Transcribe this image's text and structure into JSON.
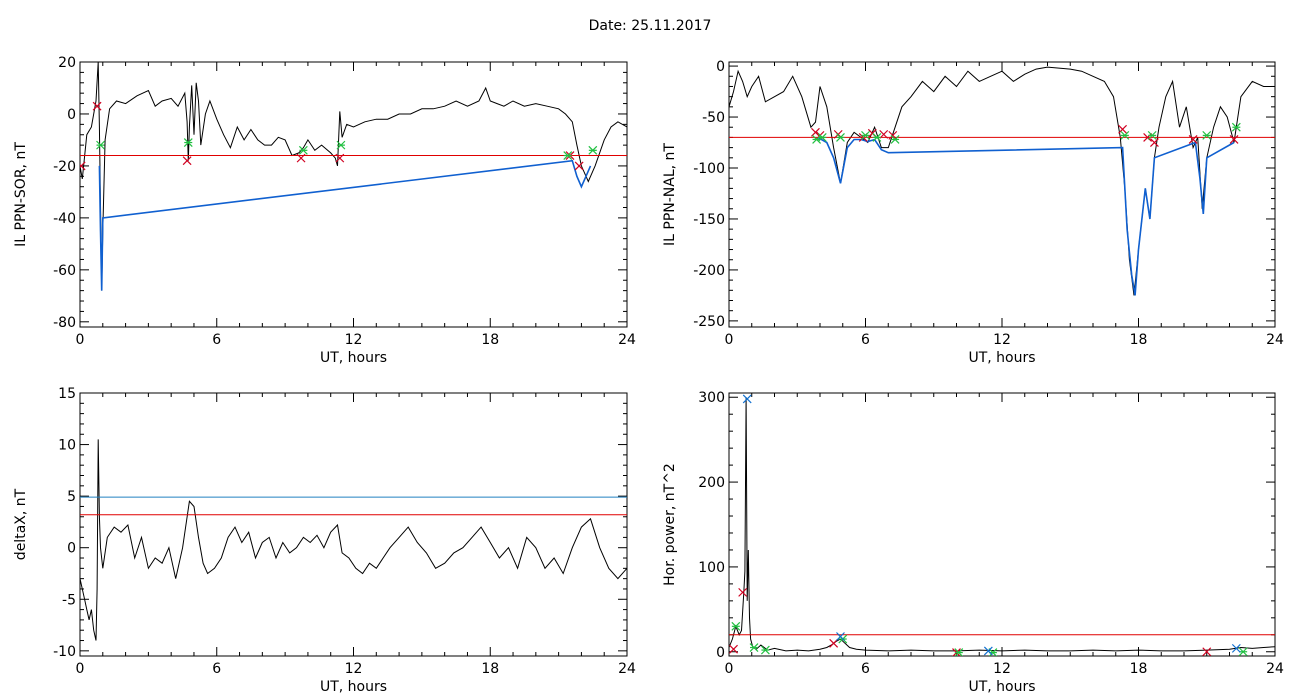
{
  "figure": {
    "title": "Date:  25.11.2017"
  },
  "chart_data": [
    {
      "id": "sor",
      "type": "line",
      "xlabel": "UT, hours",
      "ylabel": "IL PPN-SOR, nT",
      "xlim": [
        0,
        24
      ],
      "ylim": [
        -82,
        20
      ],
      "xticks": [
        0,
        6,
        12,
        18,
        24
      ],
      "yticks": [
        -80,
        -60,
        -40,
        -20,
        0,
        20
      ],
      "grid": false,
      "threshold_lines": [
        {
          "y": -16,
          "color": "#e00000"
        }
      ],
      "series": [
        {
          "color": "#000000",
          "x": [
            0,
            0.1,
            0.3,
            0.5,
            0.7,
            0.8,
            0.85,
            0.9,
            0.95,
            1.0,
            1.1,
            1.3,
            1.6,
            2.0,
            2.5,
            3.0,
            3.3,
            3.6,
            4.0,
            4.3,
            4.6,
            4.7,
            4.75,
            4.8,
            4.9,
            5.0,
            5.1,
            5.2,
            5.3,
            5.5,
            5.7,
            6.0,
            6.3,
            6.6,
            6.9,
            7.2,
            7.5,
            7.8,
            8.1,
            8.4,
            8.7,
            9.0,
            9.3,
            9.6,
            9.8,
            10.0,
            10.3,
            10.6,
            11.0,
            11.2,
            11.3,
            11.4,
            11.5,
            11.7,
            12.0,
            12.5,
            13.0,
            13.5,
            14.0,
            14.5,
            15.0,
            15.5,
            16.0,
            16.5,
            17.0,
            17.5,
            17.8,
            18.0,
            18.3,
            18.6,
            19.0,
            19.5,
            20.0,
            20.5,
            21.0,
            21.3,
            21.6,
            21.8,
            22.0,
            22.3,
            22.6,
            23.0,
            23.3,
            23.6,
            24.0
          ],
          "y": [
            -20,
            -25,
            -8,
            -5,
            5,
            20,
            -5,
            -35,
            -68,
            -45,
            -10,
            2,
            5,
            4,
            7,
            9,
            3,
            5,
            6,
            3,
            8,
            -3,
            -18,
            -5,
            11,
            -8,
            12,
            5,
            -12,
            0,
            5,
            -2,
            -8,
            -13,
            -5,
            -10,
            -6,
            -10,
            -12,
            -12,
            -9,
            -10,
            -16,
            -15,
            -13,
            -10,
            -14,
            -12,
            -15,
            -17,
            -20,
            1,
            -9,
            -4,
            -5,
            -3,
            -2,
            -2,
            0,
            0,
            2,
            2,
            3,
            5,
            3,
            5,
            10,
            5,
            4,
            3,
            5,
            3,
            4,
            3,
            2,
            0,
            -3,
            -12,
            -20,
            -26,
            -20,
            -10,
            -5,
            -3,
            -5
          ]
        },
        {
          "color": "#1060d0",
          "x": [
            0.85,
            0.9,
            0.95,
            1.0,
            21.6,
            21.8,
            22.0,
            22.2,
            22.4
          ],
          "y": [
            -20,
            -45,
            -68,
            -40,
            -18,
            -24,
            -28,
            -24,
            -20
          ]
        }
      ],
      "markers": {
        "red": {
          "x": [
            0.05,
            0.75,
            4.7,
            9.7,
            11.4,
            21.5,
            21.9
          ],
          "y": [
            -20,
            3,
            -18,
            -17,
            -17,
            -16,
            -20
          ]
        },
        "green": {
          "x": [
            0.9,
            4.75,
            9.8,
            11.45,
            21.4,
            22.5
          ],
          "y": [
            -12,
            -11,
            -14,
            -12,
            -16,
            -14
          ]
        }
      }
    },
    {
      "id": "nal",
      "type": "line",
      "xlabel": "UT, hours",
      "ylabel": "IL PPN-NAL, nT",
      "xlim": [
        0,
        24
      ],
      "ylim": [
        -256,
        4
      ],
      "xticks": [
        0,
        6,
        12,
        18,
        24
      ],
      "yticks": [
        -250,
        -200,
        -150,
        -100,
        -50,
        0
      ],
      "grid": false,
      "threshold_lines": [
        {
          "y": -70,
          "color": "#e00000"
        }
      ],
      "series": [
        {
          "color": "#000000",
          "x": [
            0,
            0.2,
            0.4,
            0.6,
            0.8,
            1.0,
            1.3,
            1.6,
            2.0,
            2.4,
            2.8,
            3.2,
            3.6,
            3.8,
            4.0,
            4.3,
            4.6,
            4.9,
            5.2,
            5.5,
            5.8,
            6.1,
            6.4,
            6.7,
            7.0,
            7.3,
            7.6,
            8.0,
            8.5,
            9.0,
            9.5,
            10.0,
            10.5,
            11.0,
            11.5,
            12.0,
            12.5,
            13.0,
            13.5,
            14.0,
            14.5,
            15.0,
            15.5,
            16.0,
            16.5,
            16.9,
            17.2,
            17.4,
            17.6,
            17.8,
            18.0,
            18.3,
            18.5,
            18.7,
            18.9,
            19.2,
            19.5,
            19.8,
            20.1,
            20.4,
            20.6,
            20.8,
            21.0,
            21.3,
            21.6,
            21.9,
            22.2,
            22.5,
            23.0,
            23.5,
            24.0
          ],
          "y": [
            -40,
            -25,
            -5,
            -15,
            -30,
            -20,
            -10,
            -35,
            -30,
            -25,
            -10,
            -30,
            -60,
            -55,
            -20,
            -40,
            -80,
            -115,
            -75,
            -65,
            -70,
            -75,
            -60,
            -80,
            -80,
            -60,
            -40,
            -30,
            -15,
            -25,
            -10,
            -20,
            -5,
            -15,
            -10,
            -5,
            -15,
            -8,
            -3,
            -1,
            -2,
            -3,
            -5,
            -10,
            -15,
            -30,
            -70,
            -120,
            -190,
            -225,
            -180,
            -120,
            -150,
            -90,
            -60,
            -30,
            -15,
            -60,
            -40,
            -80,
            -70,
            -140,
            -90,
            -60,
            -40,
            -50,
            -75,
            -30,
            -15,
            -20,
            -20
          ]
        },
        {
          "color": "#1060d0",
          "x": [
            3.9,
            4.3,
            4.6,
            4.9,
            5.2,
            5.5,
            5.8,
            6.1,
            6.4,
            6.7,
            7.0,
            17.3,
            17.5,
            17.7,
            17.85,
            18.0,
            18.3,
            18.5,
            18.7,
            20.5,
            20.7,
            20.85,
            21.0,
            22.2
          ],
          "y": [
            -70,
            -75,
            -90,
            -115,
            -80,
            -72,
            -72,
            -74,
            -72,
            -82,
            -85,
            -80,
            -160,
            -205,
            -225,
            -180,
            -120,
            -150,
            -90,
            -75,
            -110,
            -145,
            -90,
            -75
          ]
        }
      ],
      "markers": {
        "red": {
          "x": [
            3.8,
            4.0,
            4.8,
            5.9,
            6.3,
            6.8,
            7.2,
            17.3,
            18.4,
            18.7,
            20.4,
            22.2
          ],
          "y": [
            -65,
            -68,
            -67,
            -70,
            -66,
            -67,
            -68,
            -62,
            -70,
            -75,
            -72,
            -72
          ]
        },
        "green": {
          "x": [
            3.85,
            4.1,
            4.9,
            6.0,
            6.5,
            7.3,
            17.4,
            18.6,
            21.0,
            22.3
          ],
          "y": [
            -72,
            -70,
            -70,
            -68,
            -70,
            -72,
            -68,
            -68,
            -68,
            -60
          ]
        }
      }
    },
    {
      "id": "deltax",
      "type": "line",
      "xlabel": "UT, hours",
      "ylabel": "deltaX, nT",
      "xlim": [
        0,
        24
      ],
      "ylim": [
        -10.5,
        15
      ],
      "xticks": [
        0,
        6,
        12,
        18,
        24
      ],
      "yticks": [
        -10,
        -5,
        0,
        5,
        10,
        15
      ],
      "grid": false,
      "threshold_lines": [
        {
          "y": 4.9,
          "color": "#2080c0"
        },
        {
          "y": 3.2,
          "color": "#e00000"
        }
      ],
      "series": [
        {
          "color": "#000000",
          "x": [
            0,
            0.1,
            0.2,
            0.3,
            0.4,
            0.5,
            0.6,
            0.7,
            0.75,
            0.8,
            0.85,
            0.9,
            1.0,
            1.2,
            1.5,
            1.8,
            2.1,
            2.4,
            2.7,
            3.0,
            3.3,
            3.6,
            3.9,
            4.2,
            4.5,
            4.8,
            5.0,
            5.2,
            5.4,
            5.6,
            5.9,
            6.2,
            6.5,
            6.8,
            7.1,
            7.4,
            7.7,
            8.0,
            8.3,
            8.6,
            8.9,
            9.2,
            9.5,
            9.8,
            10.1,
            10.4,
            10.7,
            11.0,
            11.3,
            11.5,
            11.8,
            12.1,
            12.4,
            12.7,
            13.0,
            13.3,
            13.6,
            14.0,
            14.4,
            14.8,
            15.2,
            15.6,
            16.0,
            16.4,
            16.8,
            17.2,
            17.6,
            18.0,
            18.4,
            18.8,
            19.2,
            19.6,
            20.0,
            20.4,
            20.8,
            21.2,
            21.6,
            22.0,
            22.4,
            22.8,
            23.2,
            23.6,
            24.0
          ],
          "y": [
            -3,
            -4,
            -5,
            -6,
            -7,
            -6,
            -8,
            -9,
            -4,
            10.5,
            3,
            0,
            -2,
            1,
            2,
            1.5,
            2.2,
            -1,
            1,
            -2,
            -1,
            -1.5,
            0,
            -3,
            0,
            4.5,
            4,
            1,
            -1.5,
            -2.5,
            -2,
            -1,
            1,
            2,
            0.5,
            1.5,
            -1,
            0.5,
            1,
            -1,
            0.5,
            -0.5,
            0,
            1,
            0.5,
            1.2,
            0,
            1.5,
            2.2,
            -0.5,
            -1,
            -2,
            -2.5,
            -1.5,
            -2,
            -1,
            0,
            1,
            2,
            0.5,
            -0.5,
            -2,
            -1.5,
            -0.5,
            0,
            1,
            2,
            0.5,
            -1,
            0,
            -2,
            1,
            0,
            -2,
            -1,
            -2.5,
            0,
            2,
            2.8,
            0,
            -2,
            -3,
            -2
          ]
        }
      ],
      "markers": {
        "red": {
          "x": [],
          "y": []
        },
        "green": {
          "x": [],
          "y": []
        }
      }
    },
    {
      "id": "power",
      "type": "line",
      "xlabel": "UT, hours",
      "ylabel": "Hor. power, nT^2",
      "xlim": [
        0,
        24
      ],
      "ylim": [
        -5,
        305
      ],
      "xticks": [
        0,
        6,
        12,
        18,
        24
      ],
      "yticks": [
        0,
        100,
        200,
        300
      ],
      "grid": false,
      "threshold_lines": [
        {
          "y": 20,
          "color": "#e00000"
        }
      ],
      "series": [
        {
          "color": "#000000",
          "x": [
            0,
            0.15,
            0.3,
            0.45,
            0.55,
            0.65,
            0.7,
            0.75,
            0.8,
            0.85,
            0.9,
            0.95,
            1.05,
            1.2,
            1.4,
            1.7,
            2.0,
            2.5,
            3.0,
            3.5,
            4.0,
            4.3,
            4.5,
            4.7,
            4.9,
            5.1,
            5.3,
            5.6,
            6.0,
            7.0,
            8.0,
            9.0,
            10.0,
            11.0,
            12.0,
            13.0,
            14.0,
            15.0,
            16.0,
            17.0,
            18.0,
            19.0,
            20.0,
            21.0,
            22.0,
            22.5,
            23.0,
            23.5,
            24.0
          ],
          "y": [
            5,
            15,
            30,
            20,
            25,
            70,
            95,
            300,
            60,
            120,
            40,
            15,
            5,
            3,
            8,
            2,
            4,
            1,
            2,
            1,
            3,
            5,
            8,
            12,
            15,
            10,
            5,
            3,
            2,
            1,
            2,
            1,
            1,
            2,
            1,
            2,
            1,
            1,
            2,
            1,
            2,
            1,
            1,
            2,
            3,
            5,
            4,
            5,
            6
          ]
        }
      ],
      "markers": {
        "red": {
          "x": [
            0.2,
            0.6,
            4.6,
            10.0,
            21.0
          ],
          "y": [
            3,
            70,
            10,
            -1,
            0
          ]
        },
        "green": {
          "x": [
            0.3,
            1.1,
            1.6,
            5.0,
            10.1,
            11.6,
            22.6
          ],
          "y": [
            30,
            5,
            2,
            15,
            -1,
            -1,
            0
          ]
        },
        "blue": {
          "x": [
            0.8,
            4.9,
            11.4,
            22.3
          ],
          "y": [
            298,
            18,
            1,
            4
          ]
        }
      }
    }
  ]
}
